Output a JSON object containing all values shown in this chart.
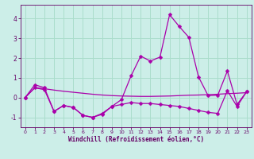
{
  "x": [
    0,
    1,
    2,
    3,
    4,
    5,
    6,
    7,
    8,
    9,
    10,
    11,
    12,
    13,
    14,
    15,
    16,
    17,
    18,
    19,
    20,
    21,
    22,
    23
  ],
  "line1": [
    0.0,
    0.65,
    0.5,
    -0.7,
    -0.4,
    -0.5,
    -0.9,
    -1.0,
    -0.8,
    -0.45,
    -0.1,
    1.1,
    2.1,
    1.85,
    2.05,
    4.2,
    3.6,
    3.05,
    1.05,
    0.1,
    0.12,
    1.35,
    -0.35,
    0.3
  ],
  "line2": [
    0.0,
    0.5,
    0.4,
    -0.7,
    -0.4,
    -0.5,
    -0.9,
    -1.0,
    -0.85,
    -0.45,
    -0.35,
    -0.25,
    -0.3,
    -0.3,
    -0.35,
    -0.4,
    -0.45,
    -0.55,
    -0.65,
    -0.75,
    -0.8,
    0.35,
    -0.45,
    0.3
  ],
  "line3": [
    0.0,
    0.5,
    0.45,
    0.38,
    0.32,
    0.27,
    0.22,
    0.17,
    0.13,
    0.1,
    0.08,
    0.07,
    0.06,
    0.06,
    0.07,
    0.08,
    0.1,
    0.12,
    0.13,
    0.15,
    0.17,
    0.2,
    0.22,
    0.25
  ],
  "background": "#cceee8",
  "grid_color": "#aaddcc",
  "line_color": "#aa00aa",
  "markersize": 2.5,
  "linewidth": 0.9,
  "xlabel": "Windchill (Refroidissement éolien,°C)",
  "ylim": [
    -1.5,
    4.7
  ],
  "yticks": [
    -1,
    0,
    1,
    2,
    3,
    4
  ],
  "xlim": [
    -0.5,
    23.5
  ],
  "xticks": [
    0,
    1,
    2,
    3,
    4,
    5,
    6,
    7,
    8,
    9,
    10,
    11,
    12,
    13,
    14,
    15,
    16,
    17,
    18,
    19,
    20,
    21,
    22,
    23
  ]
}
